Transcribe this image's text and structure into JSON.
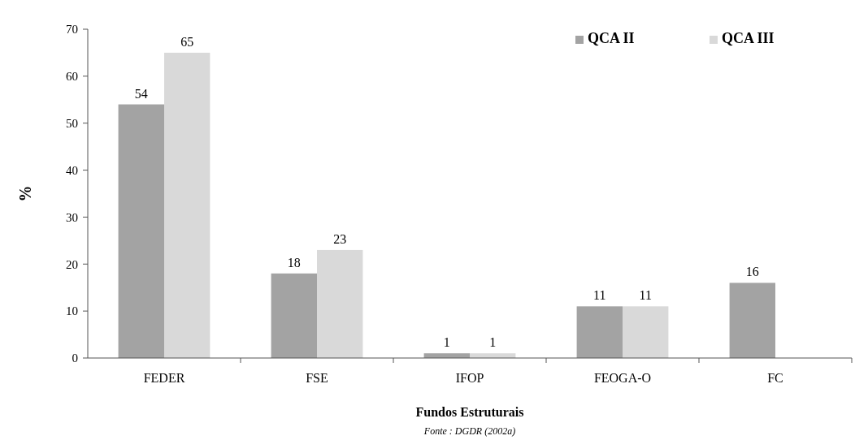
{
  "chart_data": {
    "type": "bar",
    "xlabel": "Fundos Estruturais",
    "ylabel": "%",
    "categories": [
      "FEDER",
      "FSE",
      "IFOP",
      "FEOGA-O",
      "FC"
    ],
    "series": [
      {
        "name": "QCA II",
        "color": "#a3a3a3",
        "values": [
          54,
          18,
          1,
          11,
          16
        ]
      },
      {
        "name": "QCA III",
        "color": "#d9d9d9",
        "values": [
          65,
          23,
          1,
          11,
          null
        ]
      }
    ],
    "ylim": [
      0,
      70
    ],
    "yticks": [
      0,
      10,
      20,
      30,
      40,
      50,
      60,
      70
    ],
    "grid": false,
    "legend": "top right",
    "data_labels": true,
    "annotations": [
      "Fonte : DGDR (2002a)"
    ]
  }
}
